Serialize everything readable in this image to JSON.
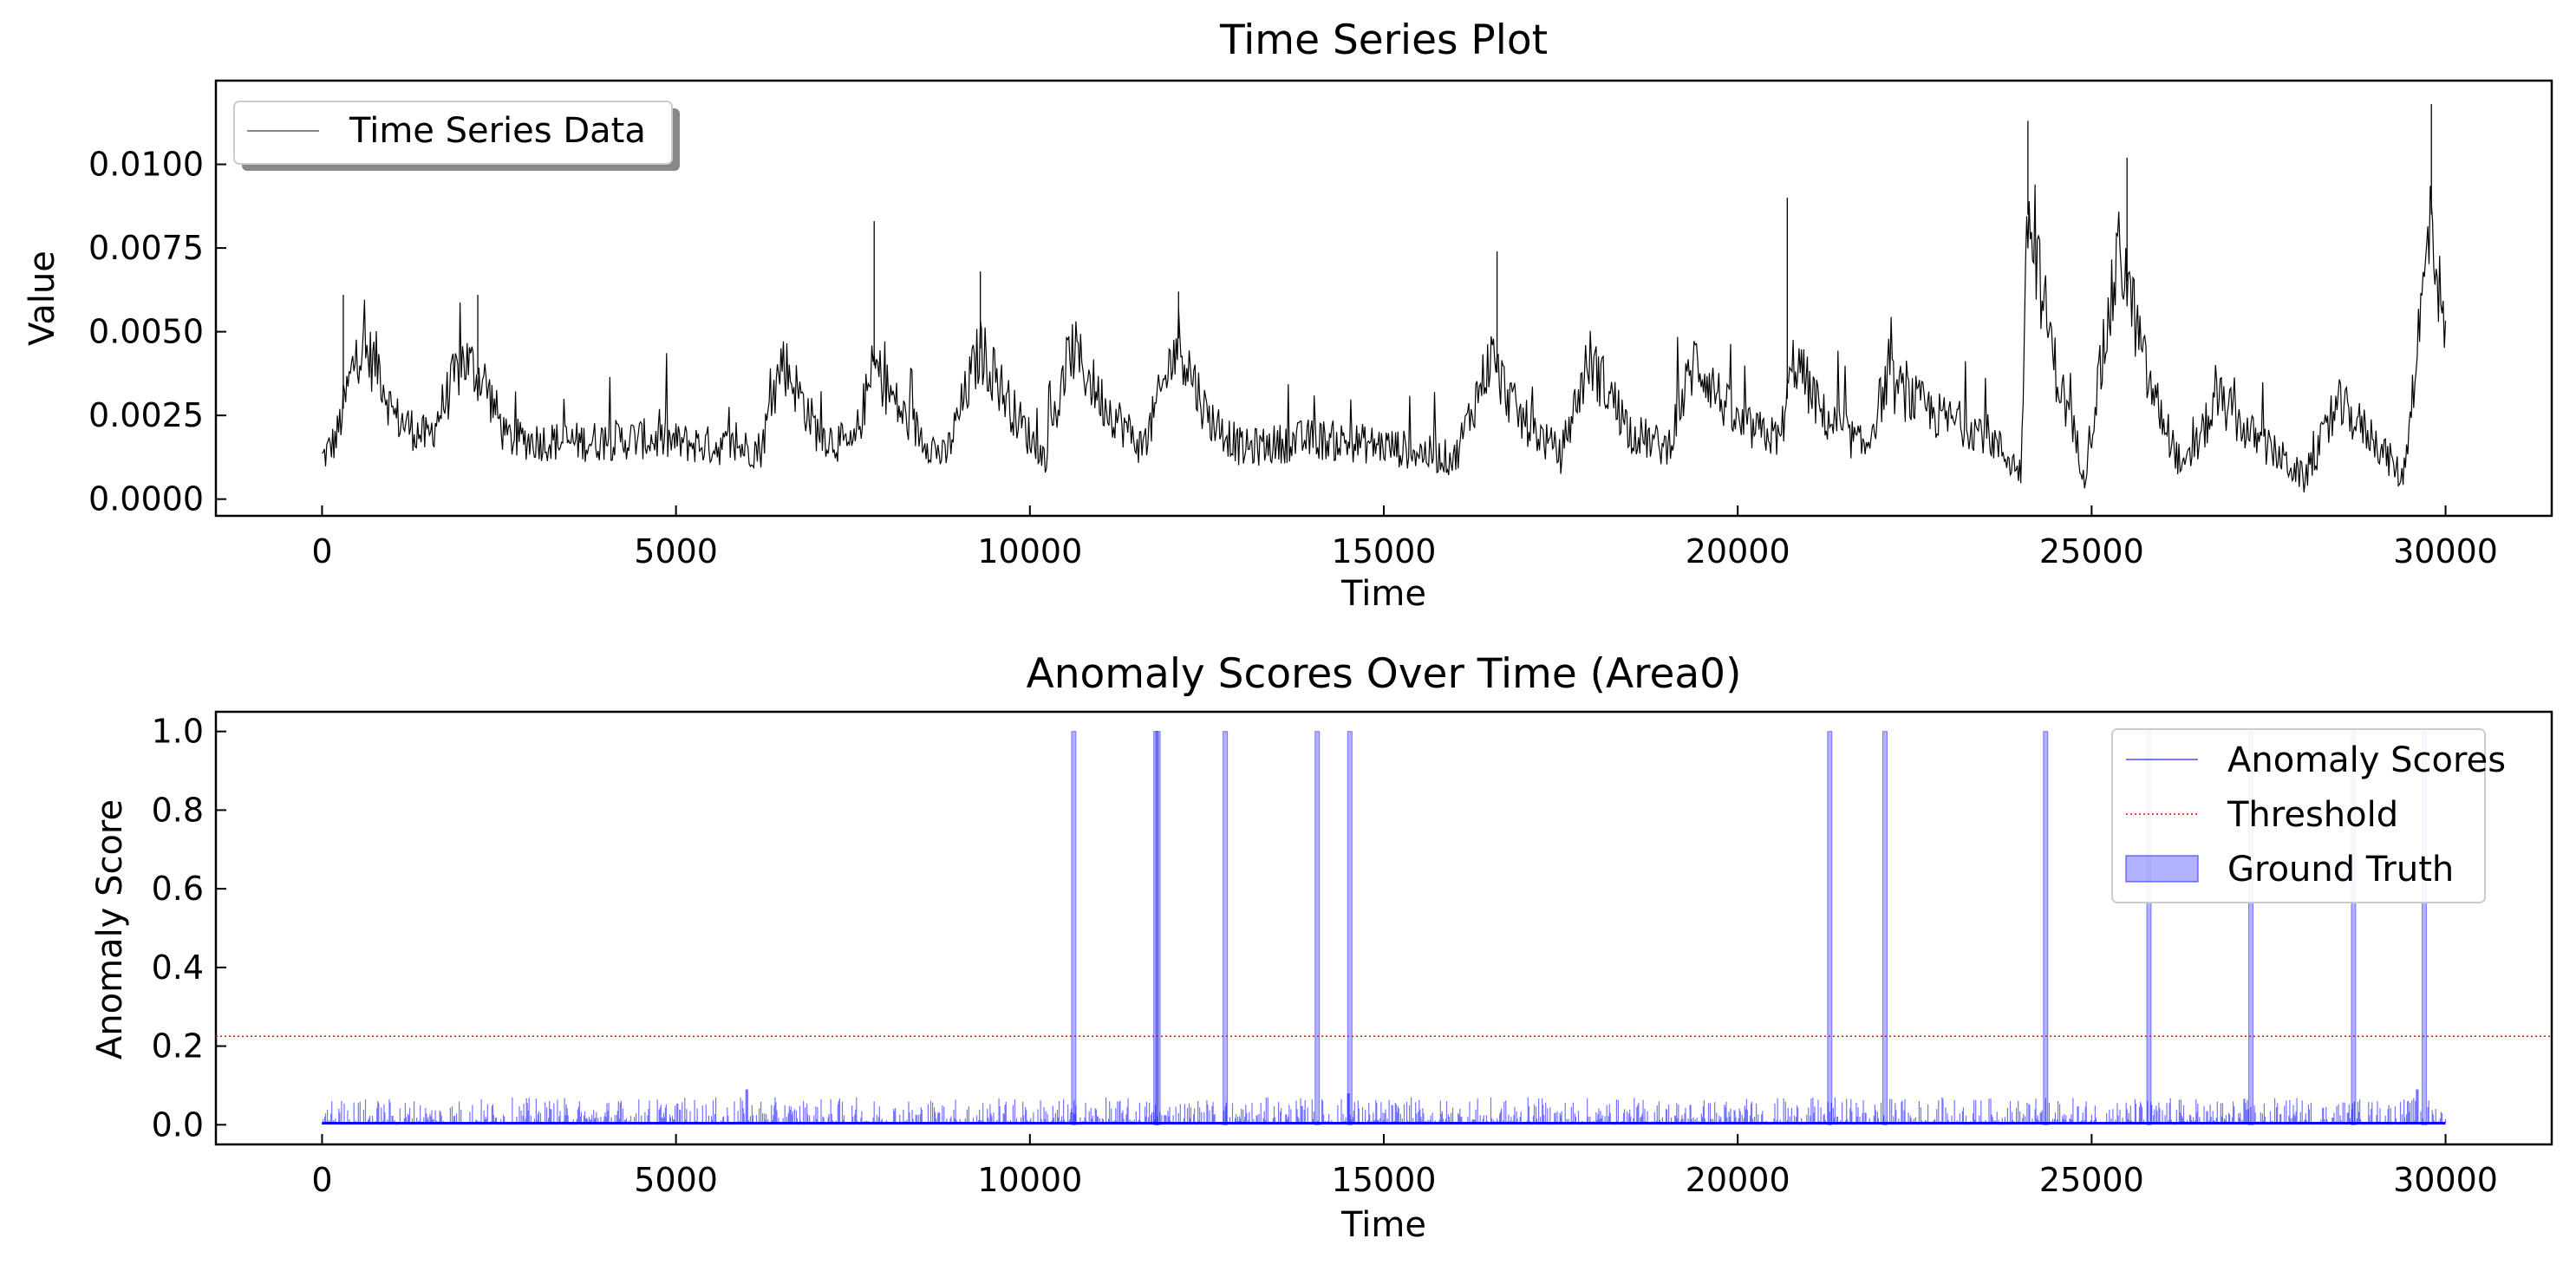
{
  "chart_data": [
    {
      "type": "line",
      "title": "Time Series Plot",
      "xlabel": "Time",
      "ylabel": "Value",
      "xlim": [
        -1500,
        31500
      ],
      "ylim": [
        -0.0005,
        0.0125
      ],
      "xticks": [
        0,
        5000,
        10000,
        15000,
        20000,
        25000,
        30000
      ],
      "xtick_labels": [
        "0",
        "5000",
        "10000",
        "15000",
        "20000",
        "25000",
        "30000"
      ],
      "yticks": [
        0.0,
        0.0025,
        0.005,
        0.0075,
        0.01
      ],
      "ytick_labels": [
        "0.0000",
        "0.0025",
        "0.0050",
        "0.0075",
        "0.0100"
      ],
      "grid": false,
      "legend_position": "top-left",
      "series": [
        {
          "name": "Time Series Data",
          "color": "#000000",
          "x_range": [
            0,
            30000
          ],
          "points": [
            [
              0,
              0.0012
            ],
            [
              200,
              0.0018
            ],
            [
              500,
              0.0045
            ],
            [
              800,
              0.004
            ],
            [
              1000,
              0.0025
            ],
            [
              1500,
              0.0018
            ],
            [
              2000,
              0.0042
            ],
            [
              2300,
              0.0035
            ],
            [
              2600,
              0.0018
            ],
            [
              3500,
              0.0017
            ],
            [
              4500,
              0.0018
            ],
            [
              5500,
              0.0016
            ],
            [
              6200,
              0.0015
            ],
            [
              6500,
              0.0042
            ],
            [
              7000,
              0.002
            ],
            [
              7500,
              0.0015
            ],
            [
              7800,
              0.004
            ],
            [
              8200,
              0.0025
            ],
            [
              8800,
              0.0012
            ],
            [
              9300,
              0.0045
            ],
            [
              9800,
              0.0025
            ],
            [
              10200,
              0.0012
            ],
            [
              10600,
              0.0045
            ],
            [
              11000,
              0.003
            ],
            [
              11600,
              0.0015
            ],
            [
              12100,
              0.0048
            ],
            [
              12500,
              0.0025
            ],
            [
              13000,
              0.0015
            ],
            [
              14000,
              0.0018
            ],
            [
              15000,
              0.0016
            ],
            [
              16000,
              0.0012
            ],
            [
              16500,
              0.0042
            ],
            [
              16900,
              0.0025
            ],
            [
              17500,
              0.0013
            ],
            [
              17900,
              0.0042
            ],
            [
              18500,
              0.002
            ],
            [
              19000,
              0.0015
            ],
            [
              19400,
              0.0042
            ],
            [
              20000,
              0.0022
            ],
            [
              20600,
              0.0018
            ],
            [
              20800,
              0.0042
            ],
            [
              21200,
              0.0025
            ],
            [
              21800,
              0.0015
            ],
            [
              22100,
              0.0035
            ],
            [
              22800,
              0.0025
            ],
            [
              23500,
              0.002
            ],
            [
              24000,
              0.0008
            ],
            [
              24100,
              0.0085
            ],
            [
              24500,
              0.0038
            ],
            [
              24900,
              0.0008
            ],
            [
              25400,
              0.0075
            ],
            [
              25800,
              0.0035
            ],
            [
              26300,
              0.0008
            ],
            [
              26800,
              0.003
            ],
            [
              27200,
              0.002
            ],
            [
              27700,
              0.0012
            ],
            [
              28000,
              0.0006
            ],
            [
              28500,
              0.0028
            ],
            [
              29000,
              0.0018
            ],
            [
              29400,
              0.0006
            ],
            [
              29800,
              0.0085
            ],
            [
              30000,
              0.0045
            ]
          ],
          "spikes": [
            [
              300,
              0.0061
            ],
            [
              2200,
              0.0061
            ],
            [
              7800,
              0.0083
            ],
            [
              9300,
              0.0068
            ],
            [
              12100,
              0.0062
            ],
            [
              16600,
              0.0074
            ],
            [
              20700,
              0.009
            ],
            [
              24100,
              0.0113
            ],
            [
              25500,
              0.0102
            ],
            [
              29800,
              0.0118
            ]
          ]
        }
      ]
    },
    {
      "type": "line",
      "title": "Anomaly Scores Over Time (Area0)",
      "xlabel": "Time",
      "ylabel": "Anomaly Score",
      "xlim": [
        -1500,
        31500
      ],
      "ylim": [
        -0.05,
        1.05
      ],
      "xticks": [
        0,
        5000,
        10000,
        15000,
        20000,
        25000,
        30000
      ],
      "xtick_labels": [
        "0",
        "5000",
        "10000",
        "15000",
        "20000",
        "25000",
        "30000"
      ],
      "yticks": [
        0.0,
        0.2,
        0.4,
        0.6,
        0.8,
        1.0
      ],
      "ytick_labels": [
        "0.0",
        "0.2",
        "0.4",
        "0.6",
        "0.8",
        "1.0"
      ],
      "grid": false,
      "legend_position": "top-right",
      "series": [
        {
          "name": "Anomaly Scores",
          "color": "#0000ff",
          "style": "solid",
          "x_range": [
            0,
            30000
          ],
          "typical_max": 0.07,
          "peak_points": [
            [
              6000,
              0.09
            ],
            [
              14500,
              0.08
            ],
            [
              29600,
              0.09
            ]
          ]
        },
        {
          "name": "Threshold",
          "color": "#ff0000",
          "style": "dotted",
          "value": 0.225
        },
        {
          "name": "Ground Truth",
          "color": "#0000ff",
          "style": "fill",
          "intervals": [
            10620,
            11780,
            11810,
            12760,
            14060,
            14520,
            21300,
            22080,
            24350,
            25810,
            27250,
            28700,
            29700
          ]
        }
      ]
    }
  ]
}
